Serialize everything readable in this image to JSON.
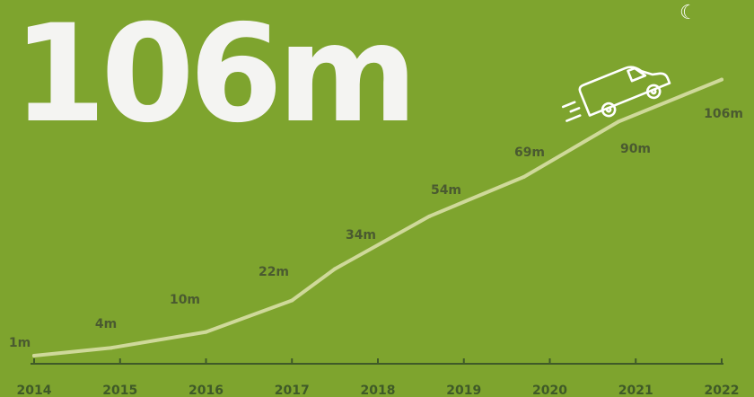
{
  "headline": "106m",
  "icons": {
    "moon": "moon-icon",
    "van": "delivery-van-icon"
  },
  "colors": {
    "background": "#7ea42e",
    "line": "#cfd99a",
    "axis": "#3f5a28",
    "label": "#4a5a30",
    "headline": "#f4f4f2"
  },
  "chart_data": {
    "type": "line",
    "x": [
      "2014",
      "2015",
      "2016",
      "2017",
      "2018",
      "2019",
      "2020",
      "2021",
      "2022"
    ],
    "series": [
      {
        "values": [
          1,
          4,
          10,
          22,
          34,
          54,
          69,
          90,
          106
        ],
        "labels": [
          "1m",
          "4m",
          "10m",
          "22m",
          "34m",
          "54m",
          "69m",
          "90m",
          "106m"
        ]
      }
    ],
    "title": "106m",
    "xlabel": "",
    "ylabel": "",
    "grid": false
  }
}
